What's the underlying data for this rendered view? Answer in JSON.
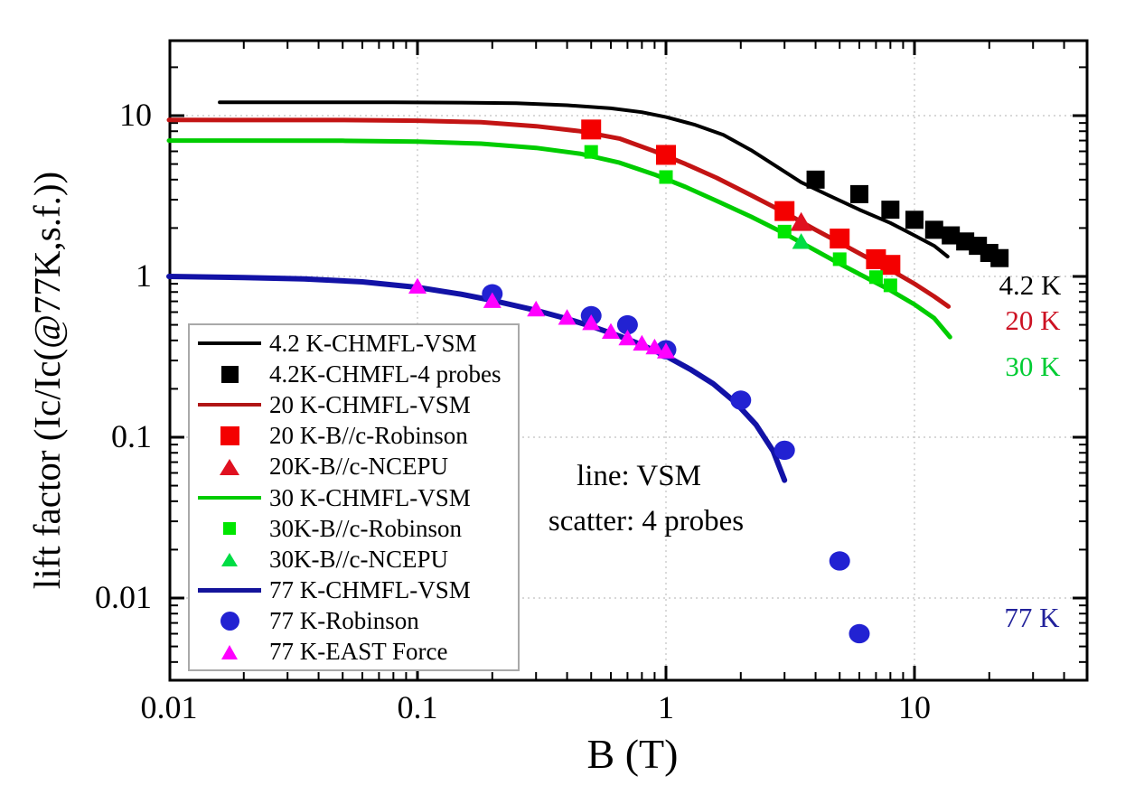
{
  "annotations": {
    "line_note": "line: VSM",
    "scatter_note": "scatter: 4 probes"
  },
  "temp_labels": [
    {
      "text": "4.2 K",
      "color": "#000000"
    },
    {
      "text": "20 K",
      "color": "#cc1122"
    },
    {
      "text": "30 K",
      "color": "#00cc33"
    },
    {
      "text": "77 K",
      "color": "#22229b"
    }
  ],
  "legend": {
    "items": [
      {
        "label": "4.2 K-CHMFL-VSM",
        "symbol": "line",
        "color": "#000000",
        "size": 4
      },
      {
        "label": "4.2K-CHMFL-4 probes",
        "symbol": "square",
        "color": "#000000",
        "size": 19
      },
      {
        "label": "20 K-CHMFL-VSM",
        "symbol": "line",
        "color": "#b01515",
        "size": 4
      },
      {
        "label": "20 K-B//c-Robinson",
        "symbol": "square",
        "color": "#f40000",
        "size": 21
      },
      {
        "label": "20K-B//c-NCEPU",
        "symbol": "triangle",
        "color": "#e01020",
        "size": 20
      },
      {
        "label": "30 K-CHMFL-VSM",
        "symbol": "line",
        "color": "#00cc00",
        "size": 4
      },
      {
        "label": "30K-B//c-Robinson",
        "symbol": "square",
        "color": "#00e600",
        "size": 14
      },
      {
        "label": "30K-B//c-NCEPU",
        "symbol": "triangle",
        "color": "#00dd44",
        "size": 17
      },
      {
        "label": "77 K-CHMFL-VSM",
        "symbol": "line",
        "color": "#14149b",
        "size": 5
      },
      {
        "label": "77 K-Robinson",
        "symbol": "circle",
        "color": "#2222d2",
        "size": 21
      },
      {
        "label": "77 K-EAST Force",
        "symbol": "triangle",
        "color": "#ff00ff",
        "size": 18
      }
    ]
  },
  "chart_data": {
    "type": "line+scatter",
    "title": "",
    "xlabel": "B (T)",
    "ylabel": "lift factor (Ic/Ic(@77K,s.f.))",
    "x_scale": "log",
    "y_scale": "log",
    "xlim": [
      0.01,
      50
    ],
    "ylim": [
      0.003,
      29
    ],
    "grid": "dotted-decades",
    "legend_position": "lower-left",
    "x_ticks": [
      {
        "value": 0.01,
        "label": "0.01"
      },
      {
        "value": 0.1,
        "label": "0.1"
      },
      {
        "value": 1,
        "label": "1"
      },
      {
        "value": 10,
        "label": "10"
      }
    ],
    "y_ticks": [
      {
        "value": 10,
        "label": "10"
      },
      {
        "value": 1,
        "label": "1"
      },
      {
        "value": 0.1,
        "label": "0.1"
      },
      {
        "value": 0.01,
        "label": "0.01"
      }
    ],
    "x_gridlines": [
      0.1,
      1,
      10
    ],
    "y_gridlines": [
      10,
      1,
      0.1,
      0.01
    ],
    "series": [
      {
        "name": "4.2 K-CHMFL-VSM",
        "type": "line",
        "color": "#000000",
        "width": 4,
        "points": [
          [
            0.016,
            12.1
          ],
          [
            0.04,
            12.1
          ],
          [
            0.08,
            12.1
          ],
          [
            0.15,
            12.05
          ],
          [
            0.25,
            11.95
          ],
          [
            0.4,
            11.6
          ],
          [
            0.6,
            11.1
          ],
          [
            0.8,
            10.5
          ],
          [
            1.0,
            9.8
          ],
          [
            1.3,
            8.8
          ],
          [
            1.7,
            7.6
          ],
          [
            2.2,
            6.1
          ],
          [
            2.8,
            4.8
          ],
          [
            3.5,
            3.85
          ],
          [
            4.5,
            3.2
          ],
          [
            6,
            2.6
          ],
          [
            8,
            2.15
          ],
          [
            10,
            1.8
          ],
          [
            12,
            1.55
          ],
          [
            13.6,
            1.33
          ]
        ]
      },
      {
        "name": "20 K-CHMFL-VSM",
        "type": "line",
        "color": "#c31414",
        "width": 5,
        "points": [
          [
            0.01,
            9.4
          ],
          [
            0.05,
            9.38
          ],
          [
            0.1,
            9.3
          ],
          [
            0.18,
            9.1
          ],
          [
            0.3,
            8.6
          ],
          [
            0.45,
            8.0
          ],
          [
            0.65,
            7.2
          ],
          [
            0.9,
            6.0
          ],
          [
            1.2,
            5.0
          ],
          [
            1.6,
            4.1
          ],
          [
            2.2,
            3.2
          ],
          [
            3,
            2.5
          ],
          [
            4,
            1.95
          ],
          [
            5,
            1.62
          ],
          [
            6.5,
            1.3
          ],
          [
            8,
            1.1
          ],
          [
            10,
            0.9
          ],
          [
            12,
            0.75
          ],
          [
            13.7,
            0.65
          ]
        ]
      },
      {
        "name": "30 K-CHMFL-VSM",
        "type": "line",
        "color": "#00cc00",
        "width": 5,
        "points": [
          [
            0.01,
            7.0
          ],
          [
            0.05,
            6.98
          ],
          [
            0.1,
            6.9
          ],
          [
            0.18,
            6.7
          ],
          [
            0.3,
            6.3
          ],
          [
            0.45,
            5.8
          ],
          [
            0.65,
            5.1
          ],
          [
            0.9,
            4.3
          ],
          [
            1.2,
            3.6
          ],
          [
            1.6,
            2.95
          ],
          [
            2.2,
            2.35
          ],
          [
            3,
            1.85
          ],
          [
            4,
            1.45
          ],
          [
            5,
            1.2
          ],
          [
            6.5,
            0.97
          ],
          [
            8,
            0.82
          ],
          [
            10,
            0.67
          ],
          [
            12,
            0.55
          ],
          [
            13.9,
            0.42
          ]
        ]
      },
      {
        "name": "77 K-CHMFL-VSM",
        "type": "line",
        "color": "#1212a6",
        "width": 6,
        "points": [
          [
            0.01,
            1.0
          ],
          [
            0.02,
            0.985
          ],
          [
            0.035,
            0.965
          ],
          [
            0.06,
            0.925
          ],
          [
            0.1,
            0.855
          ],
          [
            0.15,
            0.775
          ],
          [
            0.2,
            0.71
          ],
          [
            0.3,
            0.615
          ],
          [
            0.4,
            0.545
          ],
          [
            0.5,
            0.49
          ],
          [
            0.65,
            0.425
          ],
          [
            0.8,
            0.375
          ],
          [
            1.0,
            0.32
          ],
          [
            1.25,
            0.265
          ],
          [
            1.55,
            0.215
          ],
          [
            1.9,
            0.165
          ],
          [
            2.3,
            0.12
          ],
          [
            2.7,
            0.082
          ],
          [
            3,
            0.054
          ]
        ]
      },
      {
        "name": "4.2K-CHMFL-4 probes",
        "type": "scatter",
        "marker": "square",
        "color": "#000000",
        "size": 20,
        "points": [
          [
            4,
            4.0
          ],
          [
            6,
            3.25
          ],
          [
            8,
            2.6
          ],
          [
            10,
            2.25
          ],
          [
            12,
            1.95
          ],
          [
            14,
            1.8
          ],
          [
            16,
            1.65
          ],
          [
            18,
            1.55
          ],
          [
            20,
            1.4
          ],
          [
            22,
            1.3
          ]
        ]
      },
      {
        "name": "20 K-B//c-Robinson",
        "type": "scatter",
        "marker": "square",
        "color": "#f40000",
        "size": 22,
        "points": [
          [
            0.5,
            8.2
          ],
          [
            1,
            5.7
          ],
          [
            3,
            2.55
          ],
          [
            5,
            1.72
          ],
          [
            7,
            1.28
          ],
          [
            8,
            1.18
          ]
        ]
      },
      {
        "name": "20K-B//c-NCEPU",
        "type": "scatter",
        "marker": "triangle",
        "color": "#e01020",
        "size": 24,
        "points": [
          [
            3.5,
            2.15
          ]
        ]
      },
      {
        "name": "30K-B//c-Robinson",
        "type": "scatter",
        "marker": "square",
        "color": "#00e600",
        "size": 15,
        "points": [
          [
            0.5,
            5.95
          ],
          [
            1,
            4.15
          ],
          [
            3,
            1.9
          ],
          [
            5,
            1.28
          ],
          [
            7,
            0.99
          ],
          [
            8,
            0.88
          ]
        ]
      },
      {
        "name": "30K-B//c-NCEPU",
        "type": "scatter",
        "marker": "triangle",
        "color": "#00dd44",
        "size": 20,
        "points": [
          [
            3.5,
            1.63
          ]
        ]
      },
      {
        "name": "77 K-Robinson",
        "type": "scatter",
        "marker": "circle",
        "color": "#2222d2",
        "size": 23,
        "points": [
          [
            0.2,
            0.78
          ],
          [
            0.5,
            0.57
          ],
          [
            0.7,
            0.5
          ],
          [
            1,
            0.35
          ],
          [
            2,
            0.17
          ],
          [
            3,
            0.083
          ],
          [
            5,
            0.017
          ],
          [
            6,
            0.006
          ]
        ]
      },
      {
        "name": "77 K-EAST Force",
        "type": "scatter",
        "marker": "triangle",
        "color": "#ff00ff",
        "size": 20,
        "points": [
          [
            0.1,
            0.86
          ],
          [
            0.2,
            0.7
          ],
          [
            0.3,
            0.62
          ],
          [
            0.4,
            0.55
          ],
          [
            0.5,
            0.51
          ],
          [
            0.6,
            0.45
          ],
          [
            0.7,
            0.41
          ],
          [
            0.8,
            0.38
          ],
          [
            0.9,
            0.36
          ],
          [
            1.0,
            0.34
          ]
        ]
      }
    ]
  }
}
